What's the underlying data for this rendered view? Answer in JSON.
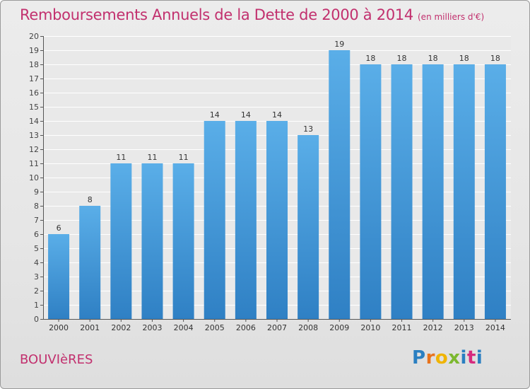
{
  "title": "Remboursements Annuels de la Dette de 2000 à 2014",
  "subtitle": "(en milliers d'€)",
  "commune": "BOUVIèRES",
  "logo": {
    "text": "Proxiti",
    "colors": [
      "#2a7fc1",
      "#e8731c",
      "#f0b400",
      "#7cb82f",
      "#2a7fc1",
      "#d62a7e",
      "#2a7fc1"
    ]
  },
  "colors": {
    "title": "#c2306e",
    "bar_light": "#5aaee8",
    "bar_dark": "#2f80c4",
    "grid": "#ffffff"
  },
  "chart_data": {
    "type": "bar",
    "categories": [
      "2000",
      "2001",
      "2002",
      "2003",
      "2004",
      "2005",
      "2006",
      "2007",
      "2008",
      "2009",
      "2010",
      "2011",
      "2012",
      "2013",
      "2014"
    ],
    "values": [
      6,
      8,
      11,
      11,
      11,
      14,
      14,
      14,
      13,
      19,
      18,
      18,
      18,
      18,
      18
    ],
    "ylim": [
      0,
      20
    ],
    "yticks": [
      0,
      1,
      2,
      3,
      4,
      5,
      6,
      7,
      8,
      9,
      10,
      11,
      12,
      13,
      14,
      15,
      16,
      17,
      18,
      19,
      20
    ],
    "grid": true,
    "legend": "none"
  }
}
